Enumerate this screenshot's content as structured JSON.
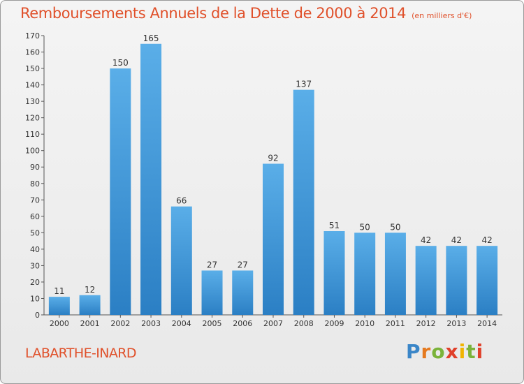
{
  "header": {
    "title": "Remboursements Annuels de la Dette de 2000 à 2014",
    "unit": "(en milliers d'€)"
  },
  "footer": {
    "commune": "LABARTHE-INARD",
    "brand": "Proxiti"
  },
  "colors": {
    "accent": "#e0502a",
    "bar_light": "#5aaee8",
    "bar_dark": "#2b7fc4"
  },
  "chart_data": {
    "type": "bar",
    "title": "Remboursements Annuels de la Dette de 2000 à 2014",
    "subtitle": "(en milliers d'€)",
    "xlabel": "",
    "ylabel": "",
    "categories": [
      "2000",
      "2001",
      "2002",
      "2003",
      "2004",
      "2005",
      "2006",
      "2007",
      "2008",
      "2009",
      "2010",
      "2011",
      "2012",
      "2013",
      "2014"
    ],
    "values": [
      11,
      12,
      150,
      165,
      66,
      27,
      27,
      92,
      137,
      51,
      50,
      50,
      42,
      42,
      42
    ],
    "ylim": [
      0,
      170
    ],
    "ytick_step": 10,
    "grid": false,
    "legend": "none"
  }
}
